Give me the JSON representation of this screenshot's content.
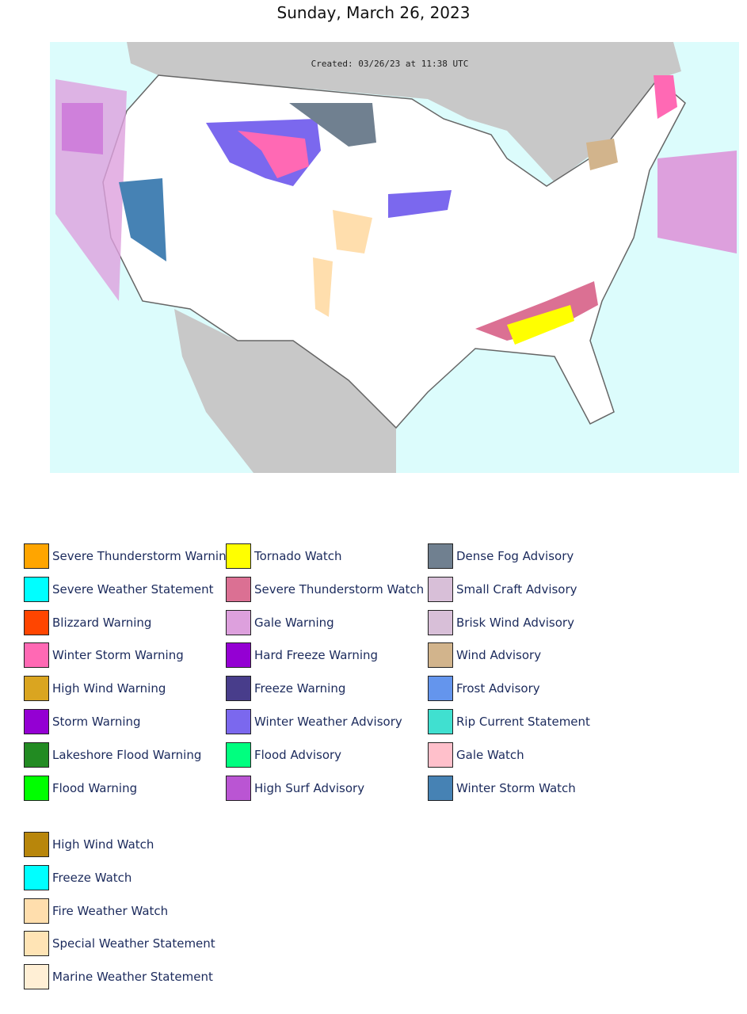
{
  "title": "Sunday, March 26, 2023",
  "map": {
    "created": "Created: 03/26/23 at 11:38 UTC"
  },
  "legend": {
    "columns": [
      [
        {
          "name": "Severe Thunderstorm Warning",
          "color": "#FFA500"
        },
        {
          "name": "Severe Weather Statement",
          "color": "#00FFFF"
        },
        {
          "name": "Blizzard Warning",
          "color": "#FF4500"
        },
        {
          "name": "Winter Storm Warning",
          "color": "#FF69B4"
        },
        {
          "name": "High Wind Warning",
          "color": "#DAA520"
        },
        {
          "name": "Storm Warning",
          "color": "#9400D3"
        },
        {
          "name": "Lakeshore Flood Warning",
          "color": "#228B22"
        },
        {
          "name": "Flood Warning",
          "color": "#00FF00"
        }
      ],
      [
        {
          "name": "Tornado Watch",
          "color": "#FFFF00"
        },
        {
          "name": "Severe Thunderstorm Watch",
          "color": "#DB7093"
        },
        {
          "name": "Gale Warning",
          "color": "#DDA0DD"
        },
        {
          "name": "Hard Freeze Warning",
          "color": "#9400D3"
        },
        {
          "name": "Freeze Warning",
          "color": "#483D8B"
        },
        {
          "name": "Winter Weather Advisory",
          "color": "#7B68EE"
        },
        {
          "name": "Flood Advisory",
          "color": "#00FF7F"
        },
        {
          "name": "High Surf Advisory",
          "color": "#BA55D3"
        }
      ],
      [
        {
          "name": "Dense Fog Advisory",
          "color": "#708090"
        },
        {
          "name": "Small Craft Advisory",
          "color": "#D8BFD8"
        },
        {
          "name": "Brisk Wind Advisory",
          "color": "#D8BFD8"
        },
        {
          "name": "Wind Advisory",
          "color": "#D2B48C"
        },
        {
          "name": "Frost Advisory",
          "color": "#6495ED"
        },
        {
          "name": "Rip Current Statement",
          "color": "#40E0D0"
        },
        {
          "name": "Gale Watch",
          "color": "#FFC0CB"
        },
        {
          "name": "Winter Storm Watch",
          "color": "#4682B4"
        }
      ]
    ],
    "extra": [
      {
        "name": "High Wind Watch",
        "color": "#B8860B"
      },
      {
        "name": "Freeze Watch",
        "color": "#00FFFF"
      },
      {
        "name": "Fire Weather Watch",
        "color": "#FFDEAD"
      },
      {
        "name": "Special Weather Statement",
        "color": "#FFE4B5"
      },
      {
        "name": "Marine Weather Statement",
        "color": "#FFEFD5"
      }
    ]
  }
}
